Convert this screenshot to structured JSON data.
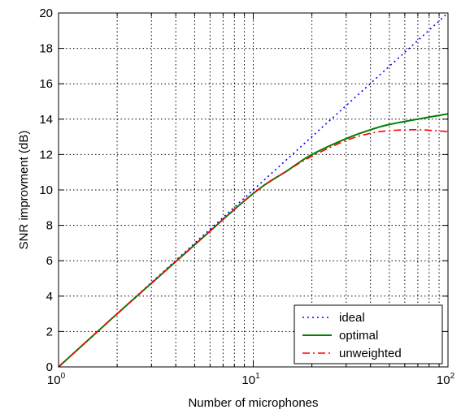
{
  "chart_data": {
    "type": "line",
    "title": "",
    "xlabel": "Number of microphones",
    "ylabel": "SNR improvment (dB)",
    "xscale": "log",
    "xlim": [
      1,
      100
    ],
    "ylim": [
      0,
      20
    ],
    "grid": true,
    "legend_position": "bottom-right",
    "x_ticks": [
      {
        "base": "10",
        "exp": "0"
      },
      {
        "base": "10",
        "exp": "1"
      },
      {
        "base": "10",
        "exp": "2"
      }
    ],
    "y_ticks": [
      "0",
      "2",
      "4",
      "6",
      "8",
      "10",
      "12",
      "14",
      "16",
      "18",
      "20"
    ],
    "series": [
      {
        "name": "ideal",
        "color": "#0000ff",
        "style": "dotted",
        "x": [
          1,
          2,
          5,
          10,
          20,
          30,
          50,
          70,
          100
        ],
        "y": [
          0,
          3.01,
          6.99,
          10.0,
          13.01,
          14.77,
          16.99,
          18.45,
          20.0
        ]
      },
      {
        "name": "optimal",
        "color": "#008000",
        "style": "solid",
        "x": [
          1,
          2,
          5,
          10,
          15,
          20,
          30,
          40,
          50,
          70,
          100
        ],
        "y": [
          0,
          3.0,
          6.9,
          9.8,
          11.1,
          12.0,
          12.9,
          13.4,
          13.7,
          14.0,
          14.3
        ]
      },
      {
        "name": "unweighted",
        "color": "#ff0000",
        "style": "dashdot",
        "x": [
          1,
          2,
          5,
          10,
          15,
          20,
          30,
          40,
          50,
          70,
          100
        ],
        "y": [
          0,
          3.0,
          6.9,
          9.8,
          11.1,
          11.9,
          12.8,
          13.2,
          13.35,
          13.4,
          13.3
        ]
      }
    ]
  }
}
